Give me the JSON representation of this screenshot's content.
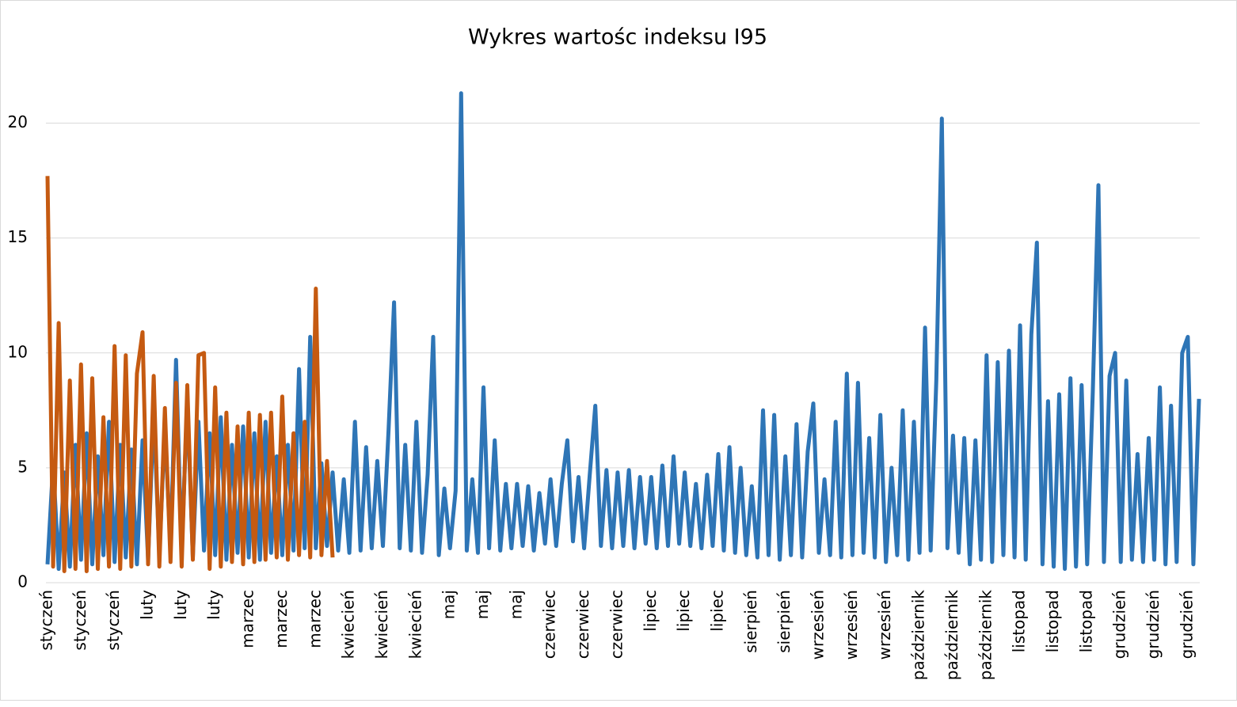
{
  "chart_data": {
    "type": "line",
    "title": "Wykres wartośc indeksu I95",
    "categories": [
      "styczeń",
      null,
      null,
      null,
      null,
      null,
      "styczeń",
      null,
      null,
      null,
      null,
      null,
      "styczeń",
      null,
      null,
      null,
      null,
      null,
      "luty",
      null,
      null,
      null,
      null,
      null,
      "luty",
      null,
      null,
      null,
      null,
      null,
      "luty",
      null,
      null,
      null,
      null,
      null,
      "marzec",
      null,
      null,
      null,
      null,
      null,
      "marzec",
      null,
      null,
      null,
      null,
      null,
      "marzec",
      null,
      null,
      null,
      null,
      null,
      "kwiecień",
      null,
      null,
      null,
      null,
      null,
      "kwiecień",
      null,
      null,
      null,
      null,
      null,
      "kwiecień",
      null,
      null,
      null,
      null,
      null,
      "maj",
      null,
      null,
      null,
      null,
      null,
      "maj",
      null,
      null,
      null,
      null,
      null,
      "maj",
      null,
      null,
      null,
      null,
      null,
      "czerwiec",
      null,
      null,
      null,
      null,
      null,
      "czerwiec",
      null,
      null,
      null,
      null,
      null,
      "czerwiec",
      null,
      null,
      null,
      null,
      null,
      "lipiec",
      null,
      null,
      null,
      null,
      null,
      "lipiec",
      null,
      null,
      null,
      null,
      null,
      "lipiec",
      null,
      null,
      null,
      null,
      null,
      "sierpień",
      null,
      null,
      null,
      null,
      null,
      "sierpień",
      null,
      null,
      null,
      null,
      null,
      "wrzesień",
      null,
      null,
      null,
      null,
      null,
      "wrzesień",
      null,
      null,
      null,
      null,
      null,
      "wrzesień",
      null,
      null,
      null,
      null,
      null,
      "październik",
      null,
      null,
      null,
      null,
      null,
      "październik",
      null,
      null,
      null,
      null,
      null,
      "październik",
      null,
      null,
      null,
      null,
      null,
      "listopad",
      null,
      null,
      null,
      null,
      null,
      "listopad",
      null,
      null,
      null,
      null,
      null,
      "listopad",
      null,
      null,
      null,
      null,
      null,
      "grudzień",
      null,
      null,
      null,
      null,
      null,
      "grudzień",
      null,
      null,
      null,
      null,
      null,
      "grudzień",
      null,
      null
    ],
    "series": [
      {
        "color": "#2e75b6",
        "values": [
          0.8,
          5.2,
          0.6,
          4.8,
          0.7,
          6.0,
          1.0,
          6.5,
          0.8,
          5.5,
          1.2,
          7.0,
          0.9,
          6.0,
          1.1,
          5.8,
          0.8,
          6.2,
          1.0,
          7.5,
          1.2,
          6.8,
          1.5,
          9.7,
          1.3,
          8.0,
          1.1,
          7.0,
          1.4,
          6.5,
          1.2,
          7.2,
          1.0,
          6.0,
          1.3,
          6.8,
          1.1,
          6.5,
          1.0,
          7.0,
          1.3,
          5.5,
          1.2,
          6.0,
          1.4,
          9.3,
          1.5,
          10.7,
          1.5,
          5.2,
          1.6,
          4.8,
          1.4,
          4.5,
          1.3,
          7.0,
          1.4,
          5.9,
          1.5,
          5.3,
          1.6,
          6.6,
          12.2,
          1.5,
          6.0,
          1.4,
          7.0,
          1.3,
          4.7,
          10.7,
          1.2,
          4.1,
          1.5,
          4.0,
          21.3,
          1.4,
          4.5,
          1.3,
          8.5,
          1.5,
          6.2,
          1.4,
          4.3,
          1.5,
          4.3,
          1.6,
          4.2,
          1.4,
          3.9,
          1.7,
          4.5,
          1.6,
          4.3,
          6.2,
          1.8,
          4.6,
          1.5,
          4.7,
          7.7,
          1.6,
          4.9,
          1.5,
          4.8,
          1.6,
          4.9,
          1.5,
          4.6,
          1.7,
          4.6,
          1.5,
          5.1,
          1.6,
          5.5,
          1.7,
          4.8,
          1.6,
          4.3,
          1.5,
          4.7,
          1.6,
          5.6,
          1.4,
          5.9,
          1.3,
          5.0,
          1.2,
          4.2,
          1.1,
          7.5,
          1.2,
          7.3,
          1.0,
          5.5,
          1.2,
          6.9,
          1.1,
          5.7,
          7.8,
          1.3,
          4.5,
          1.2,
          7.0,
          1.1,
          9.1,
          1.2,
          8.7,
          1.3,
          6.3,
          1.1,
          7.3,
          0.9,
          5.0,
          1.2,
          7.5,
          1.0,
          7.0,
          1.3,
          11.1,
          1.4,
          8.8,
          20.2,
          1.5,
          6.4,
          1.3,
          6.3,
          0.8,
          6.2,
          1.0,
          9.9,
          0.9,
          9.6,
          1.2,
          10.1,
          1.1,
          11.2,
          1.0,
          10.8,
          14.8,
          0.8,
          7.9,
          0.7,
          8.2,
          0.6,
          8.9,
          0.7,
          8.6,
          0.8,
          8.3,
          17.3,
          0.9,
          9.0,
          10.0,
          0.9,
          8.8,
          1.0,
          5.6,
          0.9,
          6.3,
          1.0,
          8.5,
          0.8,
          7.7,
          0.9,
          10.0,
          10.7,
          0.8,
          8.0
        ]
      },
      {
        "color": "#c55a11",
        "values": [
          17.7,
          0.7,
          11.3,
          0.5,
          8.8,
          0.6,
          9.5,
          0.5,
          8.9,
          0.6,
          7.2,
          0.7,
          10.3,
          0.6,
          9.9,
          0.7,
          9.1,
          10.9,
          0.8,
          9.0,
          0.7,
          7.6,
          0.9,
          8.7,
          0.7,
          8.6,
          1.0,
          9.9,
          10.0,
          0.6,
          8.5,
          0.7,
          7.4,
          0.9,
          6.8,
          0.8,
          7.4,
          0.9,
          7.3,
          1.0,
          7.4,
          1.1,
          8.1,
          1.0,
          6.5,
          1.2,
          7.0,
          1.1,
          12.8,
          1.2,
          5.3,
          1.1,
          null,
          null,
          null,
          null,
          null,
          null,
          null,
          null,
          null,
          null,
          null,
          null,
          null,
          null,
          null,
          null,
          null,
          null,
          null,
          null,
          null,
          null,
          null,
          null,
          null,
          null,
          null,
          null,
          null,
          null,
          null,
          null,
          null,
          null,
          null,
          null,
          null,
          null,
          null,
          null,
          null,
          null,
          null,
          null,
          null,
          null,
          null,
          null,
          null,
          null,
          null,
          null,
          null,
          null,
          null,
          null,
          null,
          null,
          null,
          null,
          null,
          null,
          null,
          null,
          null,
          null,
          null,
          null,
          null,
          null,
          null,
          null,
          null,
          null,
          null,
          null,
          null,
          null,
          null,
          null,
          null,
          null,
          null,
          null,
          null,
          null,
          null,
          null,
          null,
          null,
          null,
          null,
          null,
          null,
          null,
          null,
          null,
          null,
          null,
          null,
          null,
          null,
          null,
          null,
          null,
          null,
          null,
          null,
          null,
          null,
          null,
          null,
          null,
          null,
          null,
          null,
          null,
          null,
          null,
          null,
          null,
          null,
          null,
          null,
          null,
          null,
          null,
          null,
          null,
          null,
          null,
          null,
          null,
          null,
          null,
          null,
          null,
          null,
          null,
          null,
          null,
          null,
          null,
          null,
          null,
          null,
          null,
          null,
          null,
          null,
          null,
          null,
          null,
          null,
          null
        ]
      }
    ],
    "ylim": [
      0,
      21.5
    ],
    "yticks": [
      0,
      5,
      10,
      15,
      20
    ],
    "grid": true
  }
}
